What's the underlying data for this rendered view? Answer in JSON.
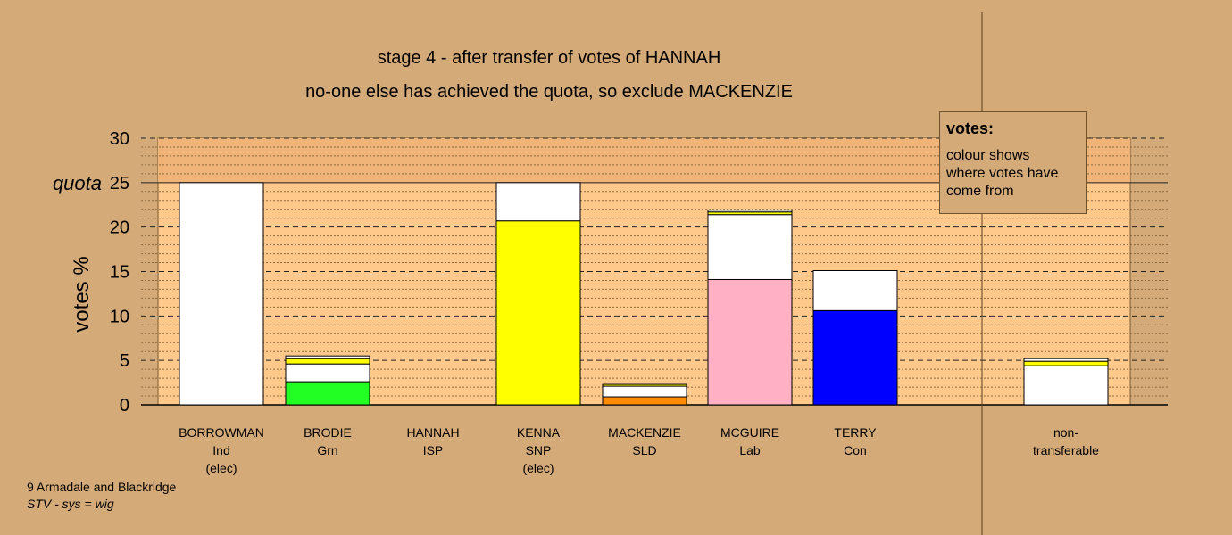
{
  "title": "stage 4 - after transfer of votes of HANNAH",
  "subtitle": "no-one else has achieved the quota, so exclude MACKENZIE",
  "footer": {
    "line1": "9 Armadale and Blackridge",
    "line2": "STV - sys = wig"
  },
  "legend": {
    "title": "votes:",
    "body": "colour shows where votes have come from"
  },
  "colors": {
    "background": "#d4aa78",
    "plot": "#ffc98c",
    "quota_band": "#f0b478"
  },
  "chart_data": {
    "type": "bar",
    "stacked": true,
    "ylabel": "votes %",
    "quota_label": "quota",
    "quota": 25,
    "ylim": [
      0,
      30
    ],
    "yticks": [
      0,
      5,
      10,
      15,
      20,
      25,
      30
    ],
    "categories": [
      {
        "name": "BORROWMAN",
        "party": "Ind",
        "note": "(elec)"
      },
      {
        "name": "BRODIE",
        "party": "Grn",
        "note": ""
      },
      {
        "name": "HANNAH",
        "party": "ISP",
        "note": ""
      },
      {
        "name": "KENNA",
        "party": "SNP",
        "note": "(elec)"
      },
      {
        "name": "MACKENZIE",
        "party": "SLD",
        "note": ""
      },
      {
        "name": "MCGUIRE",
        "party": "Lab",
        "note": ""
      },
      {
        "name": "TERRY",
        "party": "Con",
        "note": ""
      },
      {
        "name": "non-",
        "party": "transferable",
        "note": ""
      }
    ],
    "stacks": [
      [
        {
          "value": 25.0,
          "color": "#ffffff"
        }
      ],
      [
        {
          "value": 2.6,
          "color": "#22ff22"
        },
        {
          "value": 2.0,
          "color": "#ffffff"
        },
        {
          "value": 0.6,
          "color": "#ffff00"
        },
        {
          "value": 0.3,
          "color": "#ffffff"
        }
      ],
      [],
      [
        {
          "value": 20.7,
          "color": "#ffff00"
        },
        {
          "value": 4.3,
          "color": "#ffffff"
        }
      ],
      [
        {
          "value": 0.9,
          "color": "#ff8c00"
        },
        {
          "value": 1.2,
          "color": "#ffffff"
        },
        {
          "value": 0.2,
          "color": "#ffff00"
        }
      ],
      [
        {
          "value": 14.1,
          "color": "#ffb0c4"
        },
        {
          "value": 7.3,
          "color": "#ffffff"
        },
        {
          "value": 0.3,
          "color": "#ffff00"
        },
        {
          "value": 0.2,
          "color": "#ffffff"
        }
      ],
      [
        {
          "value": 10.6,
          "color": "#0000ff"
        },
        {
          "value": 4.5,
          "color": "#ffffff"
        }
      ],
      [
        {
          "value": 4.4,
          "color": "#ffffff"
        },
        {
          "value": 0.5,
          "color": "#ffff00"
        },
        {
          "value": 0.3,
          "color": "#ffffff"
        }
      ]
    ]
  }
}
